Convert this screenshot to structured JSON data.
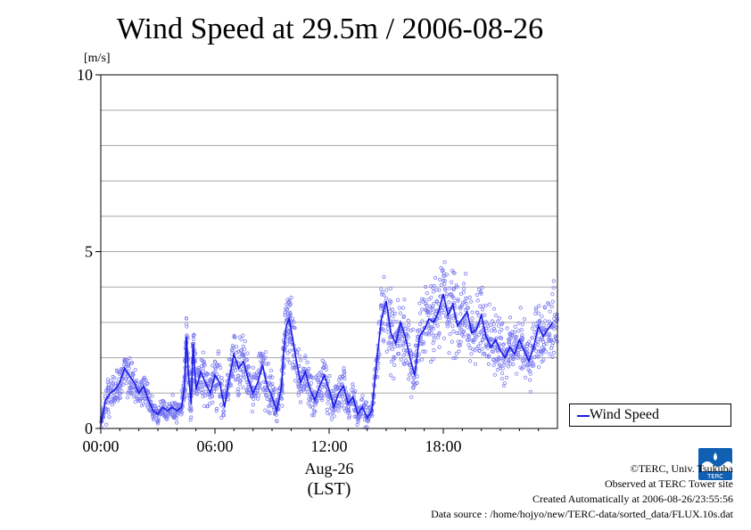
{
  "chart_data": {
    "type": "scatter",
    "title": "Wind Speed at 29.5m / 2006-08-26",
    "ylabel": "[m/s]",
    "ylim": [
      0,
      10
    ],
    "yticks": [
      "0",
      "5",
      "10"
    ],
    "xlim": [
      0,
      24
    ],
    "xticks": [
      "00:00",
      "06:00",
      "12:00",
      "18:00"
    ],
    "xdate": "Aug-26",
    "xunit": "(LST)",
    "grid": true,
    "legend_position": "bottom-right outside",
    "series": [
      {
        "name": "Wind Speed",
        "color": "#1a1ae6",
        "x": [
          0.0,
          0.25,
          0.5,
          0.75,
          1.0,
          1.25,
          1.5,
          1.75,
          2.0,
          2.25,
          2.5,
          2.75,
          3.0,
          3.25,
          3.5,
          3.75,
          4.0,
          4.25,
          4.4,
          4.5,
          4.6,
          4.75,
          4.85,
          5.0,
          5.25,
          5.5,
          5.75,
          6.0,
          6.25,
          6.5,
          6.75,
          7.0,
          7.25,
          7.5,
          7.75,
          8.0,
          8.25,
          8.5,
          8.75,
          9.0,
          9.25,
          9.5,
          9.6,
          9.75,
          9.9,
          10.0,
          10.25,
          10.5,
          10.75,
          11.0,
          11.25,
          11.5,
          11.75,
          12.0,
          12.25,
          12.5,
          12.75,
          13.0,
          13.25,
          13.5,
          13.75,
          14.0,
          14.25,
          14.5,
          14.75,
          15.0,
          15.25,
          15.5,
          15.75,
          16.0,
          16.25,
          16.5,
          16.75,
          17.0,
          17.25,
          17.5,
          17.75,
          18.0,
          18.25,
          18.5,
          18.75,
          19.0,
          19.25,
          19.5,
          19.75,
          20.0,
          20.25,
          20.5,
          20.75,
          21.0,
          21.25,
          21.5,
          21.75,
          22.0,
          22.25,
          22.5,
          22.75,
          23.0,
          23.25,
          23.5,
          23.75
        ],
        "y": [
          0.1,
          0.8,
          1.0,
          1.1,
          1.3,
          1.7,
          1.5,
          1.3,
          1.0,
          1.2,
          0.8,
          0.5,
          0.4,
          0.6,
          0.5,
          0.6,
          0.5,
          0.6,
          1.2,
          2.6,
          1.6,
          0.7,
          2.4,
          1.1,
          1.6,
          1.3,
          1.0,
          1.5,
          1.3,
          0.6,
          1.4,
          2.1,
          1.7,
          1.9,
          1.4,
          1.0,
          1.3,
          1.8,
          1.2,
          0.9,
          0.5,
          1.2,
          2.1,
          2.9,
          3.1,
          2.8,
          2.0,
          1.3,
          1.6,
          1.1,
          0.8,
          1.2,
          1.5,
          1.1,
          0.6,
          1.0,
          1.2,
          0.7,
          0.9,
          0.4,
          0.6,
          0.3,
          0.5,
          1.9,
          3.1,
          3.6,
          2.7,
          2.4,
          3.0,
          2.6,
          2.0,
          1.5,
          2.6,
          2.8,
          3.1,
          3.0,
          3.3,
          3.8,
          3.2,
          3.5,
          2.9,
          3.1,
          3.3,
          2.7,
          2.8,
          3.2,
          2.6,
          2.3,
          2.5,
          2.2,
          2.0,
          2.3,
          2.1,
          2.5,
          2.2,
          1.9,
          2.3,
          2.9,
          2.6,
          2.8,
          3.0
        ],
        "spread": [
          0.2,
          0.5,
          0.4,
          0.4,
          0.5,
          0.5,
          0.5,
          0.4,
          0.4,
          0.4,
          0.3,
          0.2,
          0.2,
          0.3,
          0.2,
          0.3,
          0.2,
          0.3,
          0.6,
          0.8,
          0.7,
          0.4,
          0.8,
          0.6,
          0.7,
          0.6,
          0.5,
          0.7,
          0.6,
          0.4,
          0.6,
          0.7,
          0.7,
          0.7,
          0.6,
          0.5,
          0.6,
          0.7,
          0.6,
          0.5,
          0.3,
          0.6,
          0.8,
          0.9,
          0.9,
          0.8,
          0.7,
          0.6,
          0.7,
          0.5,
          0.4,
          0.6,
          0.6,
          0.5,
          0.4,
          0.5,
          0.6,
          0.4,
          0.5,
          0.3,
          0.4,
          0.2,
          0.3,
          0.7,
          1.0,
          1.0,
          0.9,
          0.8,
          0.9,
          0.8,
          0.8,
          0.7,
          0.9,
          0.9,
          1.0,
          1.0,
          1.0,
          1.1,
          1.0,
          1.0,
          0.9,
          1.0,
          1.0,
          0.9,
          0.9,
          0.9,
          0.9,
          0.8,
          0.8,
          0.8,
          0.8,
          0.8,
          0.7,
          0.8,
          0.7,
          0.7,
          0.8,
          0.8,
          0.8,
          0.8,
          0.9
        ]
      }
    ]
  },
  "credits": {
    "copyright": "©TERC, Univ. Tsukuba",
    "observed": "Observed at TERC Tower site",
    "created": "Created Automatically at 2006-08-26/23:55:56",
    "source": "Data source : /home/hojyo/new/TERC-data/sorted_data/FLUX.10s.dat"
  },
  "logo": {
    "text": "TERC",
    "color": "#0f5fb3"
  }
}
